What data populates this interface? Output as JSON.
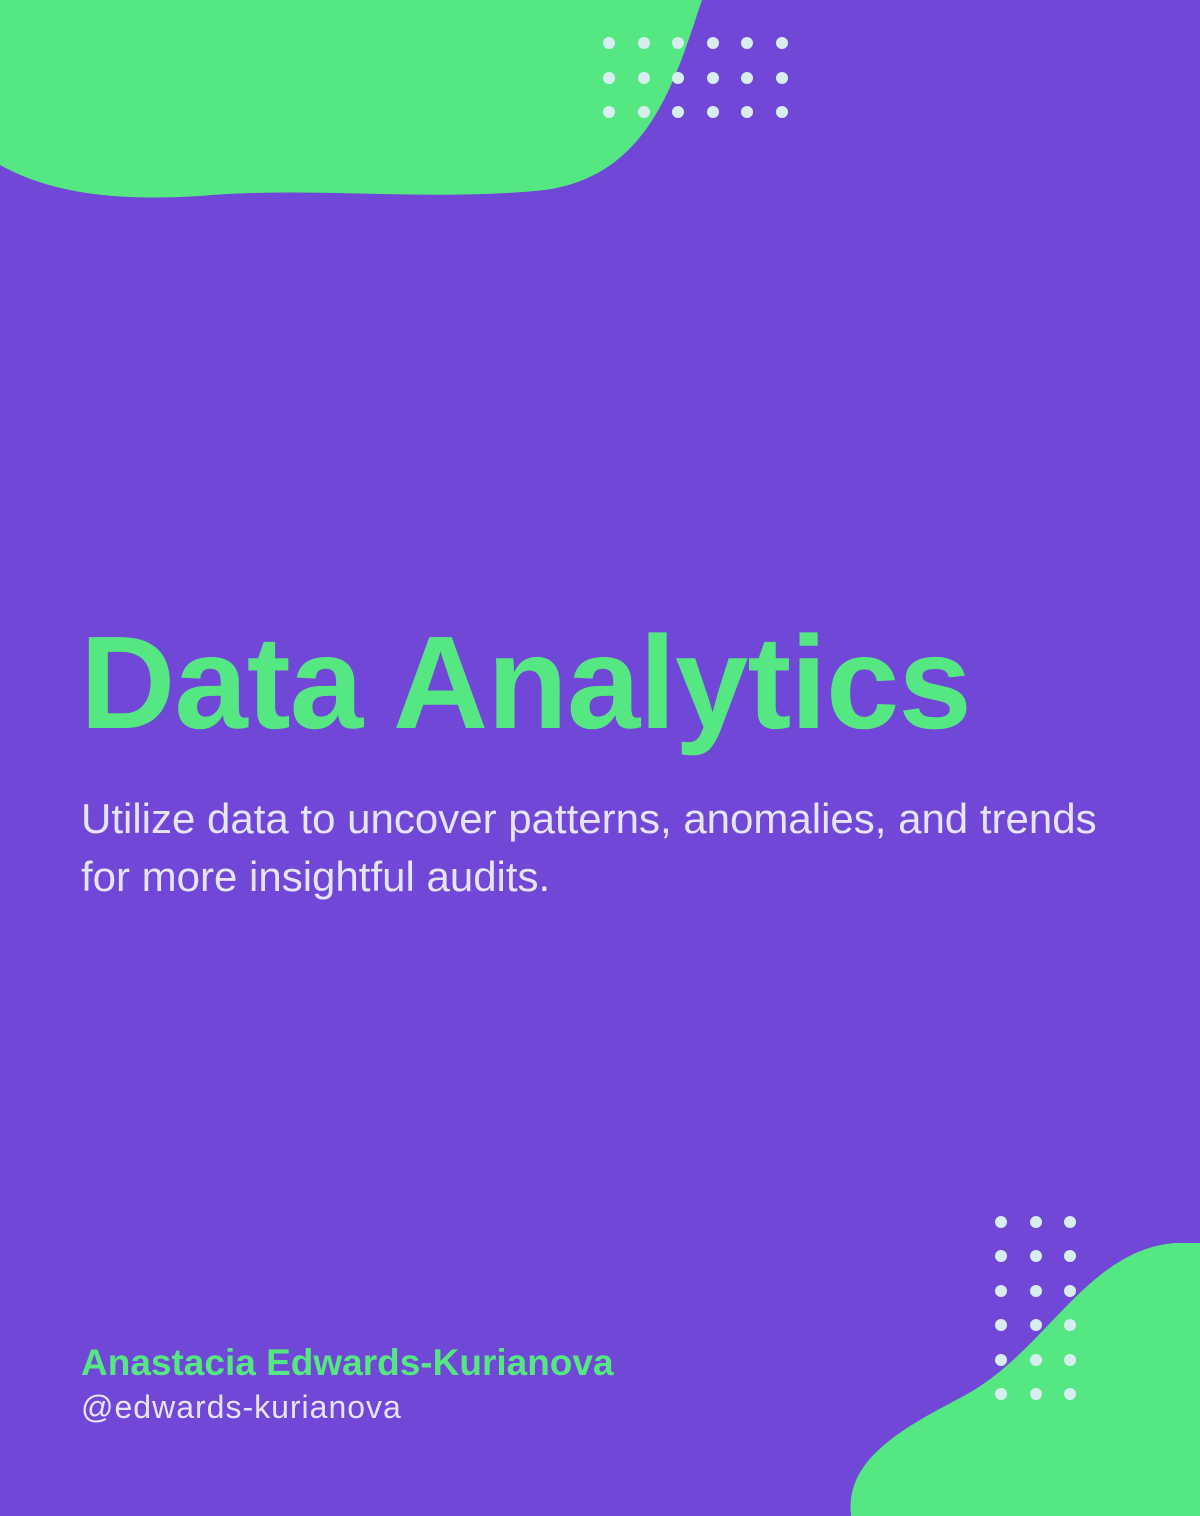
{
  "colors": {
    "background": "#7047D6",
    "accent": "#55E882",
    "dots": "#D6EEF0",
    "text_light": "#E6E4F8"
  },
  "title": "Data Analytics",
  "subtitle": "Utilize data to uncover patterns, anomalies, and trends for more insightful audits.",
  "author": {
    "name": "Anastacia Edwards-Kurianova",
    "handle": "@edwards-kurianova"
  }
}
